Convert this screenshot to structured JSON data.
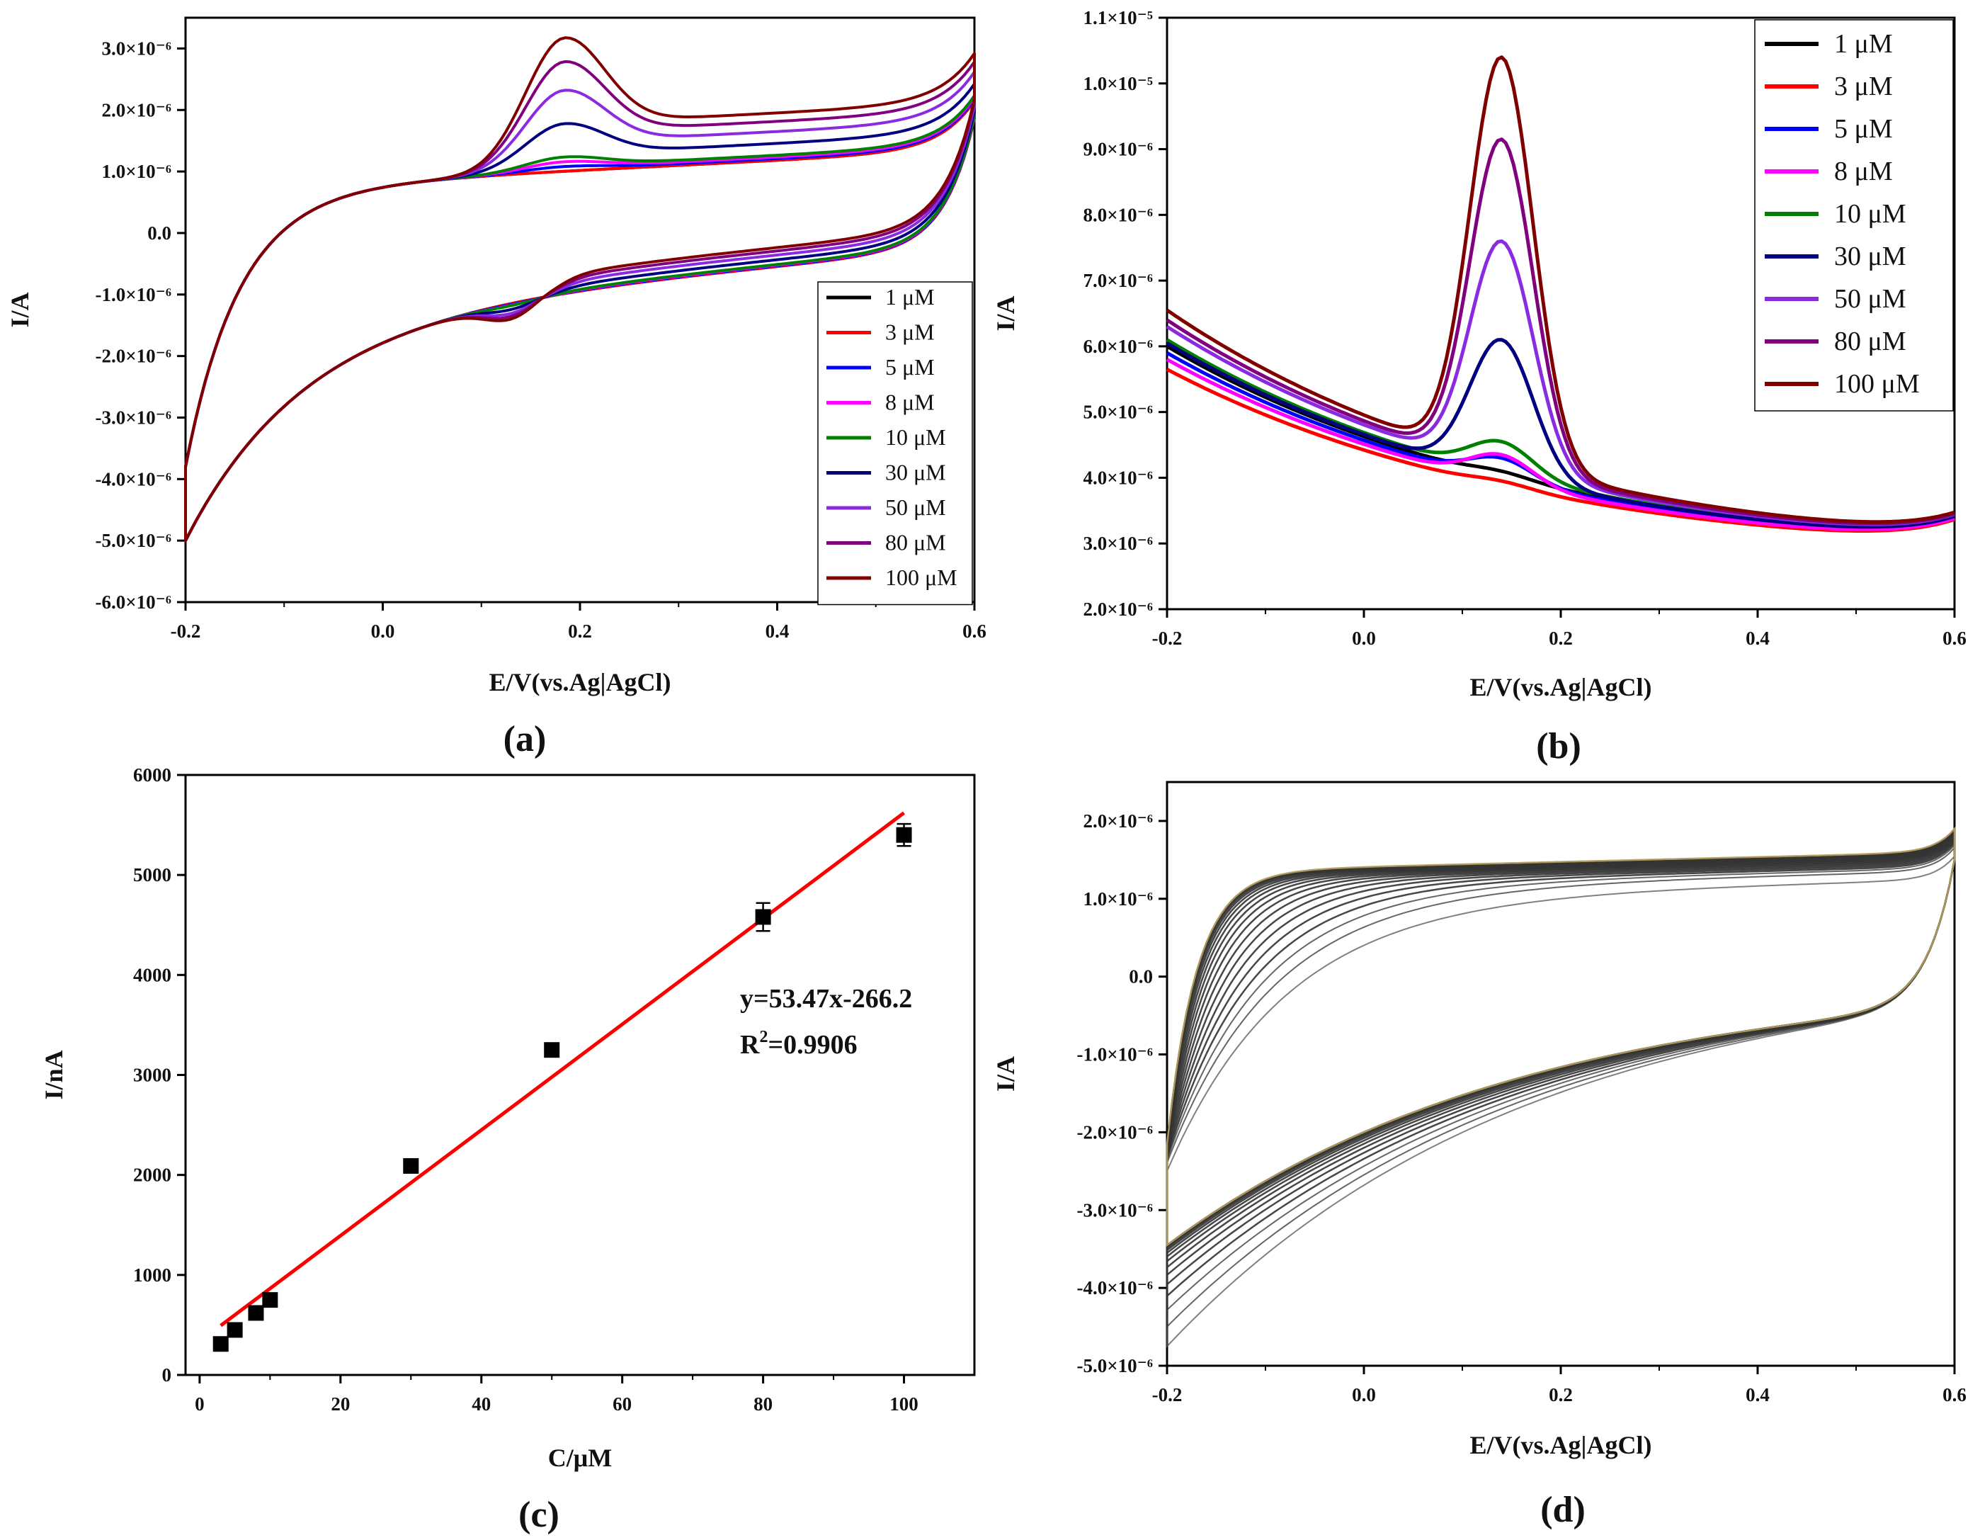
{
  "chart_data": [
    {
      "panel": "(a)",
      "type": "line",
      "xlabel": "E/V(vs.Ag|AgCl)",
      "ylabel": "I/A",
      "xlim": [
        -0.2,
        0.6
      ],
      "ylim": [
        -6e-06,
        3.5e-06
      ],
      "x_ticks": [
        -0.2,
        0.0,
        0.2,
        0.4,
        0.6
      ],
      "x_tick_labels": [
        "-0.2",
        "0.0",
        "0.2",
        "0.4",
        "0.6"
      ],
      "y_ticks": [
        3e-06,
        2e-06,
        1e-06,
        0,
        -1e-06,
        -2e-06,
        -3e-06,
        -4e-06,
        -5e-06,
        -6e-06
      ],
      "y_tick_labels": [
        "3.0×10⁻⁶",
        "2.0×10⁻⁶",
        "1.0×10⁻⁶",
        "0.0",
        "-1.0×10⁻⁶",
        "-2.0×10⁻⁶",
        "-3.0×10⁻⁶",
        "-4.0×10⁻⁶",
        "-5.0×10⁻⁶",
        "-6.0×10⁻⁶"
      ],
      "legend_position": "bottom-right",
      "series": [
        {
          "name": "1 μM",
          "color": "#000000",
          "ox_peak": 0.0,
          "red_dip": 0.0
        },
        {
          "name": "3 μM",
          "color": "#ff0000",
          "ox_peak": 0.0,
          "red_dip": 0.0
        },
        {
          "name": "5 μM",
          "color": "#0000ff",
          "ox_peak": 5e-08,
          "red_dip": 2e-08
        },
        {
          "name": "8 μM",
          "color": "#ff00ff",
          "ox_peak": 1e-07,
          "red_dip": 4e-08
        },
        {
          "name": "10 μM",
          "color": "#008000",
          "ox_peak": 1.5e-07,
          "red_dip": 5e-08
        },
        {
          "name": "30 μM",
          "color": "#000080",
          "ox_peak": 5e-07,
          "red_dip": 1.5e-07
        },
        {
          "name": "50 μM",
          "color": "#8a2be2",
          "ox_peak": 8.5e-07,
          "red_dip": 2.5e-07
        },
        {
          "name": "80 μM",
          "color": "#800080",
          "ox_peak": 1.15e-06,
          "red_dip": 3.3e-07
        },
        {
          "name": "100 μM",
          "color": "#800000",
          "ox_peak": 1.4e-06,
          "red_dip": 4e-07
        }
      ]
    },
    {
      "panel": "(b)",
      "type": "line",
      "xlabel": "E/V(vs.Ag|AgCl)",
      "ylabel": "I/A",
      "xlim": [
        -0.2,
        0.6
      ],
      "ylim": [
        2e-06,
        1.1e-05
      ],
      "x_ticks": [
        -0.2,
        0.0,
        0.2,
        0.4,
        0.6
      ],
      "x_tick_labels": [
        "-0.2",
        "0.0",
        "0.2",
        "0.4",
        "0.6"
      ],
      "y_ticks": [
        1.1e-05,
        1e-05,
        9e-06,
        8e-06,
        7e-06,
        6e-06,
        5e-06,
        4e-06,
        3e-06,
        2e-06
      ],
      "y_tick_labels": [
        "1.1×10⁻⁵",
        "1.0×10⁻⁵",
        "9.0×10⁻⁶",
        "8.0×10⁻⁶",
        "7.0×10⁻⁶",
        "6.0×10⁻⁶",
        "5.0×10⁻⁶",
        "4.0×10⁻⁶",
        "3.0×10⁻⁶",
        "2.0×10⁻⁶"
      ],
      "legend_position": "top-right",
      "peak_potential": 0.14,
      "series": [
        {
          "name": "1 μM",
          "color": "#000000",
          "start": 6e-06,
          "peak": 4.1e-06
        },
        {
          "name": "3 μM",
          "color": "#ff0000",
          "start": 5.65e-06,
          "peak": 3.95e-06
        },
        {
          "name": "5 μM",
          "color": "#0000ff",
          "start": 5.9e-06,
          "peak": 4.3e-06
        },
        {
          "name": "8 μM",
          "color": "#ff00ff",
          "start": 5.8e-06,
          "peak": 4.35e-06
        },
        {
          "name": "10 μM",
          "color": "#008000",
          "start": 6.1e-06,
          "peak": 4.55e-06
        },
        {
          "name": "30 μM",
          "color": "#000080",
          "start": 6.05e-06,
          "peak": 6.1e-06
        },
        {
          "name": "50 μM",
          "color": "#8a2be2",
          "start": 6.3e-06,
          "peak": 7.6e-06
        },
        {
          "name": "80 μM",
          "color": "#800080",
          "start": 6.4e-06,
          "peak": 9.15e-06
        },
        {
          "name": "100 μM",
          "color": "#800000",
          "start": 6.55e-06,
          "peak": 1.04e-05
        }
      ]
    },
    {
      "panel": "(c)",
      "type": "scatter",
      "xlabel": "C/μM",
      "ylabel": "I/nA",
      "xlim": [
        -2,
        110
      ],
      "ylim": [
        0,
        6000
      ],
      "x_ticks": [
        0,
        20,
        40,
        60,
        80,
        100
      ],
      "x_tick_labels": [
        "0",
        "20",
        "40",
        "60",
        "80",
        "100"
      ],
      "y_ticks": [
        0,
        1000,
        2000,
        3000,
        4000,
        5000,
        6000
      ],
      "y_tick_labels": [
        "0",
        "1000",
        "2000",
        "3000",
        "4000",
        "5000",
        "6000"
      ],
      "x": [
        3,
        5,
        8,
        10,
        30,
        50,
        80,
        100
      ],
      "y": [
        310,
        450,
        620,
        750,
        2090,
        3250,
        4580,
        5400
      ],
      "error": [
        0,
        0,
        0,
        0,
        0,
        0,
        140,
        110
      ],
      "fit": {
        "slope": 53.47,
        "intercept": -266.2,
        "x_range": [
          3,
          100
        ],
        "color": "#ff0000"
      },
      "annotation_equation": "y=53.47x-266.2",
      "annotation_r2_prefix": "R",
      "annotation_r2_sup": "2",
      "annotation_r2_value": "=0.9906"
    },
    {
      "panel": "(d)",
      "type": "line",
      "xlabel": "E/V(vs.Ag|AgCl)",
      "ylabel": "I/A",
      "xlim": [
        -0.2,
        0.6
      ],
      "ylim": [
        -5e-06,
        2.5e-06
      ],
      "x_ticks": [
        -0.2,
        0.0,
        0.2,
        0.4,
        0.6
      ],
      "x_tick_labels": [
        "-0.2",
        "0.0",
        "0.2",
        "0.4",
        "0.6"
      ],
      "y_ticks": [
        2e-06,
        1e-06,
        0,
        -1e-06,
        -2e-06,
        -3e-06,
        -4e-06,
        -5e-06
      ],
      "y_tick_labels": [
        "2.0×10⁻⁶",
        "1.0×10⁻⁶",
        "0.0",
        "-1.0×10⁻⁶",
        "-2.0×10⁻⁶",
        "-3.0×10⁻⁶",
        "-4.0×10⁻⁶",
        "-5.0×10⁻⁶"
      ],
      "cycle_count": 20,
      "colors": {
        "cycles": "#333333",
        "first_cycle": "#555555",
        "last_cycle": "#b8a060"
      }
    }
  ]
}
